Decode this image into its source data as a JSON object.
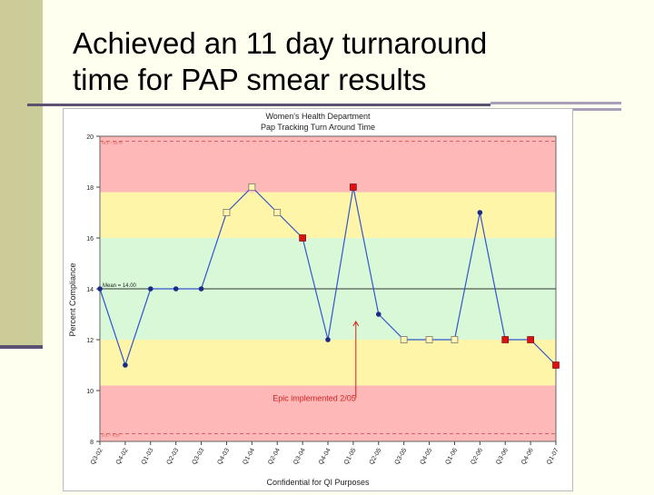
{
  "slide": {
    "title_line1": "Achieved an 11 day turnaround",
    "title_line2": "time for PAP smear results"
  },
  "colors": {
    "sidebar": "#cccc99",
    "rule": "#5c5073",
    "band_red": "#ffb8b8",
    "band_yellow": "#fff5a8",
    "band_green": "#d8f8d8",
    "line": "#3355cc",
    "point_blue": "#1a2a88",
    "point_red": "#dd1111",
    "point_yellow": "#fff5b0",
    "annotation": "#cc2222"
  },
  "chart_data": {
    "type": "line",
    "title": "Women's Health Department",
    "subtitle": "Pap Tracking Turn Around Time",
    "ylabel": "Percent Compliance",
    "xlabel": "",
    "footer": "Confidential for QI Purposes",
    "ylim": [
      8,
      20
    ],
    "yticks": [
      8,
      10,
      12,
      14,
      16,
      18,
      20
    ],
    "categories": [
      "Q3-02",
      "Q4-02",
      "Q1-03",
      "Q2-03",
      "Q3-03",
      "Q4-03",
      "Q1-04",
      "Q2-04",
      "Q3-04",
      "Q4-04",
      "Q1-05",
      "Q2-05",
      "Q3-05",
      "Q4-05",
      "Q1-06",
      "Q2-06",
      "Q3-06",
      "Q4-06",
      "Q1-07"
    ],
    "series": [
      {
        "values": [
          14,
          11,
          14,
          14,
          14,
          17,
          18,
          17,
          16,
          12,
          18,
          13,
          12,
          12,
          12,
          17,
          12,
          12,
          11
        ],
        "point_styles": [
          "blue",
          "blue",
          "blue",
          "blue",
          "blue",
          "yellow",
          "yellow",
          "yellow",
          "red",
          "blue",
          "red",
          "blue",
          "yellow",
          "yellow",
          "yellow",
          "blue",
          "red",
          "red",
          "red"
        ]
      }
    ],
    "bands": [
      {
        "from": 8,
        "to": 10.2,
        "color": "red"
      },
      {
        "from": 10.2,
        "to": 12,
        "color": "yellow"
      },
      {
        "from": 12,
        "to": 16,
        "color": "green"
      },
      {
        "from": 16,
        "to": 17.8,
        "color": "yellow"
      },
      {
        "from": 17.8,
        "to": 20,
        "color": "red"
      }
    ],
    "mean": {
      "value": 14,
      "label": "Mean = 14.00"
    },
    "ucl": {
      "value": 19.8,
      "label": "UCL = 19.75"
    },
    "lcl": {
      "value": 8.3,
      "label": "LCL = 8.25"
    },
    "annotation": {
      "text": "Epic implemented 2/05",
      "at_index": 11
    },
    "grid": false,
    "legend": "none"
  }
}
